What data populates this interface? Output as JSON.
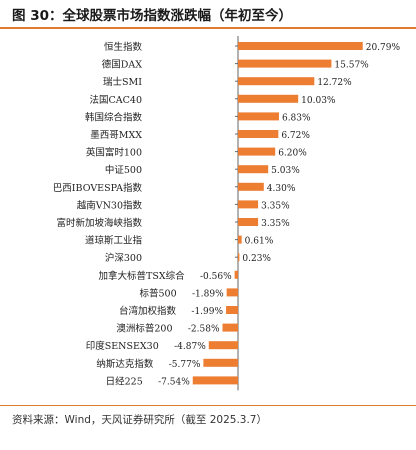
{
  "header": {
    "title": "图 30：全球股票市场指数涨跌幅（年初至今）"
  },
  "footer": {
    "source": "资料来源：Wind，天风证券研究所（截至 2025.3.7）"
  },
  "colors": {
    "bar": "#ed7d31",
    "accent_rule": "#e07a2e",
    "axis": "#666666"
  },
  "chart_data": {
    "type": "bar",
    "orientation": "horizontal",
    "categories": [
      "恒生指数",
      "德国DAX",
      "瑞士SMI",
      "法国CAC40",
      "韩国综合指数",
      "墨西哥MXX",
      "英国富时100",
      "中证500",
      "巴西IBOVESPA指数",
      "越南VN30指数",
      "富时新加坡海峡指数",
      "道琼斯工业指",
      "沪深300",
      "加拿大标普TSX综合",
      "标普500",
      "台湾加权指数",
      "澳洲标普200",
      "印度SENSEX30",
      "纳斯达克指数",
      "日经225"
    ],
    "values": [
      20.79,
      15.57,
      12.72,
      10.03,
      6.83,
      6.72,
      6.2,
      5.03,
      4.3,
      3.35,
      3.35,
      0.61,
      0.23,
      -0.56,
      -1.89,
      -1.99,
      -2.58,
      -4.87,
      -5.77,
      -7.54
    ],
    "value_labels": [
      "20.79%",
      "15.57%",
      "12.72%",
      "10.03%",
      "6.83%",
      "6.72%",
      "6.20%",
      "5.03%",
      "4.30%",
      "3.35%",
      "3.35%",
      "0.61%",
      "0.23%",
      "-0.56%",
      "-1.89%",
      "-1.99%",
      "-2.58%",
      "-4.87%",
      "-5.77%",
      "-7.54%"
    ],
    "unit": "%",
    "xlim": [
      -8,
      21
    ],
    "grid": false,
    "legend": "none",
    "xlabel": "",
    "ylabel": ""
  }
}
